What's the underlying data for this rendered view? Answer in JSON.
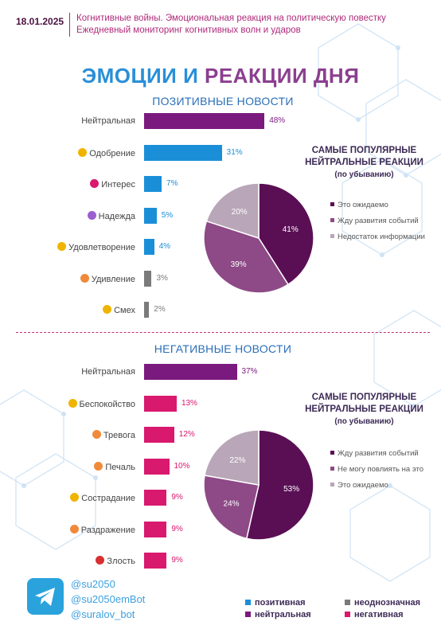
{
  "header": {
    "date": "18.01.2025",
    "subtitle_line1": "Когнитивные войны. Эмоциональная реакция на политическую повестку",
    "subtitle_line2": "Ежедневный мониторинг когнитивных волн и ударов"
  },
  "title_part1": "ЭМОЦИИ И ",
  "title_part2": "РЕАКЦИИ ДНЯ",
  "colors": {
    "positive": "#1a8fd8",
    "neutral": "#7a1a7e",
    "ambiguous": "#7a7a7a",
    "negative": "#d8196e",
    "pie_dark": "#5a0f55",
    "pie_mid": "#8d4a86",
    "pie_light": "#b9a6b8"
  },
  "positive_section": {
    "title": "ПОЗИТИВНЫЕ НОВОСТИ",
    "pie_title": "САМЫЕ ПОПУЛЯРНЫЕ НЕЙТРАЛЬНЫЕ РЕАКЦИИ",
    "pie_subtitle": "(по убыванию)"
  },
  "negative_section": {
    "title": "НЕГАТИВНЫЕ НОВОСТИ",
    "pie_title": "САМЫЕ ПОПУЛЯРНЫЕ НЕЙТРАЛЬНЫЕ РЕАКЦИИ",
    "pie_subtitle": "(по убыванию)"
  },
  "footer": {
    "handles": [
      "@su2050",
      "@su2050emBot",
      "@suralov_bot"
    ],
    "legend": [
      {
        "label": "позитивная",
        "color": "#1a8fd8"
      },
      {
        "label": "неоднозначная",
        "color": "#7a7a7a"
      },
      {
        "label": "нейтральная",
        "color": "#7a1a7e"
      },
      {
        "label": "негативная",
        "color": "#d8196e"
      }
    ]
  },
  "chart_data": [
    {
      "type": "bar",
      "title": "ПОЗИТИВНЫЕ НОВОСТИ",
      "categories": [
        "Нейтральная",
        "Одобрение",
        "Интерес",
        "Надежда",
        "Удовлетворение",
        "Удивление",
        "Смех"
      ],
      "values": [
        48,
        31,
        7,
        5,
        4,
        3,
        2
      ],
      "value_labels": [
        "48%",
        "31%",
        "7%",
        "5%",
        "4%",
        "3%",
        "2%"
      ],
      "tones": [
        "neutral",
        "positive",
        "positive",
        "positive",
        "positive",
        "ambiguous",
        "ambiguous"
      ],
      "emoji_colors": [
        "",
        "#f0b400",
        "#d8196e",
        "#9b5fd0",
        "#f0b400",
        "#f08a3a",
        "#f0b400"
      ]
    },
    {
      "type": "pie",
      "title": "САМЫЕ ПОПУЛЯРНЫЕ НЕЙТРАЛЬНЫЕ РЕАКЦИИ",
      "labels": [
        "Это ожидаемо",
        "Жду развития событий",
        "Недостаток информации"
      ],
      "values": [
        41,
        39,
        20
      ],
      "value_labels": [
        "41%",
        "39%",
        "20%"
      ],
      "colors": [
        "#5a0f55",
        "#8d4a86",
        "#b9a6b8"
      ]
    },
    {
      "type": "bar",
      "title": "НЕГАТИВНЫЕ НОВОСТИ",
      "categories": [
        "Нейтральная",
        "Беспокойство",
        "Тревога",
        "Печаль",
        "Сострадание",
        "Раздражение",
        "Злость"
      ],
      "values": [
        37,
        13,
        12,
        10,
        9,
        9,
        9
      ],
      "value_labels": [
        "37%",
        "13%",
        "12%",
        "10%",
        "9%",
        "9%",
        "9%"
      ],
      "tones": [
        "neutral",
        "negative",
        "negative",
        "negative",
        "negative",
        "negative",
        "negative"
      ],
      "emoji_colors": [
        "",
        "#f0b400",
        "#f08a3a",
        "#f08a3a",
        "#f0b400",
        "#f08a3a",
        "#d83030"
      ]
    },
    {
      "type": "pie",
      "title": "САМЫЕ ПОПУЛЯРНЫЕ НЕЙТРАЛЬНЫЕ РЕАКЦИИ",
      "labels": [
        "Жду развития событий",
        "Не могу повлиять на это",
        "Это ожидаемо"
      ],
      "values": [
        53,
        24,
        22
      ],
      "value_labels": [
        "53%",
        "24%",
        "22%"
      ],
      "colors": [
        "#5a0f55",
        "#8d4a86",
        "#b9a6b8"
      ]
    }
  ]
}
